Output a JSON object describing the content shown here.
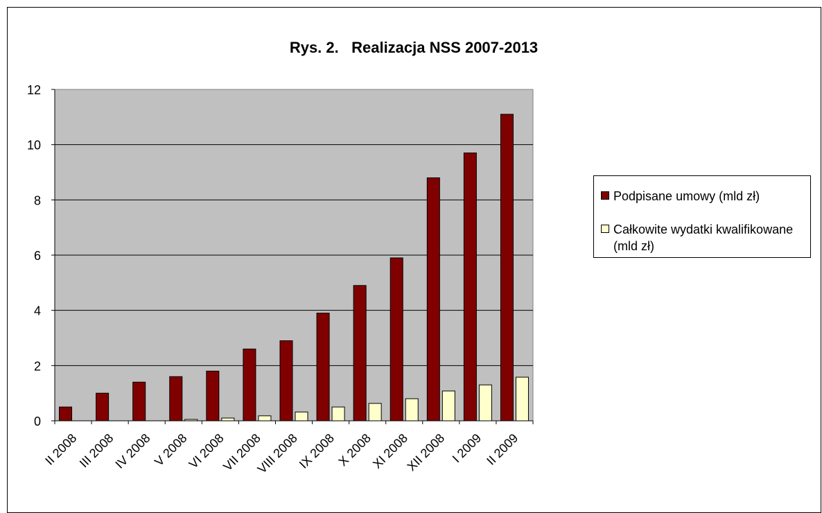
{
  "chart_data": {
    "type": "bar",
    "title": "Rys. 2.   Realizacja NSS 2007-2013",
    "categories": [
      "II 2008",
      "III 2008",
      "IV 2008",
      "V 2008",
      "VI 2008",
      "VII 2008",
      "VIII 2008",
      "IX 2008",
      "X 2008",
      "XI 2008",
      "XII 2008",
      "I 2009",
      "II 2009"
    ],
    "series": [
      {
        "name": "Podpisane umowy (mld zł)",
        "color": "#800000",
        "values": [
          0.5,
          1.0,
          1.4,
          1.6,
          1.8,
          2.6,
          2.9,
          3.9,
          4.9,
          5.9,
          8.8,
          9.7,
          11.1
        ]
      },
      {
        "name": "Całkowite wydatki kwalifikowane (mld zł)",
        "color": "#ffffcc",
        "values": [
          0,
          0,
          0,
          0.05,
          0.1,
          0.18,
          0.32,
          0.5,
          0.63,
          0.8,
          1.08,
          1.3,
          1.58
        ]
      }
    ],
    "xlabel": "",
    "ylabel": "",
    "ylim": [
      0,
      12
    ],
    "yticks": [
      "0",
      "2",
      "4",
      "6",
      "8",
      "10",
      "12"
    ],
    "grid": true,
    "plot_background": "#c0c0c0",
    "legend_position": "right"
  }
}
